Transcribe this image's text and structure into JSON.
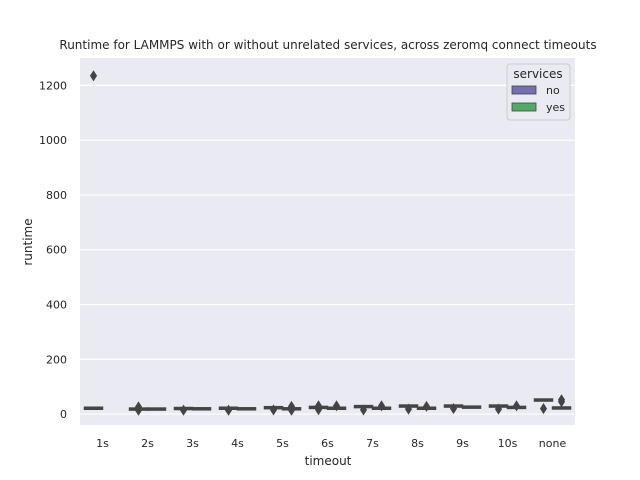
{
  "chart_data": {
    "type": "box",
    "title": "Runtime for LAMMPS with or without unrelated services, across zeromq connect timeouts",
    "xlabel": "timeout",
    "ylabel": "runtime",
    "categories": [
      "1s",
      "2s",
      "3s",
      "4s",
      "5s",
      "6s",
      "7s",
      "8s",
      "9s",
      "10s",
      "none"
    ],
    "ylim": [
      -40,
      1300
    ],
    "yticks": [
      0,
      200,
      400,
      600,
      800,
      1000,
      1200
    ],
    "grid": true,
    "legend": {
      "title": "services",
      "placement": "top-right"
    },
    "series": [
      {
        "name": "no",
        "color": "#7570b0",
        "boxes": [
          {
            "min": 20,
            "q1": 21,
            "median": 22,
            "q3": 23,
            "max": 24,
            "outliers": [
              1235
            ]
          },
          {
            "min": 17,
            "q1": 18,
            "median": 19,
            "q3": 20,
            "max": 21,
            "outliers": [
              14,
              26
            ]
          },
          {
            "min": 19,
            "q1": 20,
            "median": 21,
            "q3": 22,
            "max": 23,
            "outliers": [
              14
            ]
          },
          {
            "min": 20,
            "q1": 21,
            "median": 22,
            "q3": 23,
            "max": 24,
            "outliers": [
              14
            ]
          },
          {
            "min": 22,
            "q1": 23,
            "median": 24,
            "q3": 25,
            "max": 26,
            "outliers": [
              15
            ]
          },
          {
            "min": 20,
            "q1": 22,
            "median": 24,
            "q3": 26,
            "max": 28,
            "outliers": [
              16,
              30
            ]
          },
          {
            "min": 26,
            "q1": 27,
            "median": 28,
            "q3": 29,
            "max": 30,
            "outliers": [
              15
            ]
          },
          {
            "min": 28,
            "q1": 29,
            "median": 30,
            "q3": 31,
            "max": 32,
            "outliers": [
              18
            ]
          },
          {
            "min": 28,
            "q1": 29,
            "median": 30,
            "q3": 31,
            "max": 32,
            "outliers": [
              20
            ]
          },
          {
            "min": 28,
            "q1": 29,
            "median": 30,
            "q3": 31,
            "max": 32,
            "outliers": [
              18
            ]
          },
          {
            "min": 50,
            "q1": 51,
            "median": 52,
            "q3": 53,
            "max": 54,
            "outliers": [
              20
            ]
          }
        ]
      },
      {
        "name": "yes",
        "color": "#55a868",
        "boxes": [
          null,
          {
            "min": 17,
            "q1": 18,
            "median": 19,
            "q3": 20,
            "max": 21,
            "outliers": []
          },
          {
            "min": 18,
            "q1": 19,
            "median": 20,
            "q3": 21,
            "max": 22,
            "outliers": []
          },
          {
            "min": 18,
            "q1": 19,
            "median": 20,
            "q3": 21,
            "max": 22,
            "outliers": []
          },
          {
            "min": 18,
            "q1": 19,
            "median": 20,
            "q3": 21,
            "max": 22,
            "outliers": [
              14,
              28
            ]
          },
          {
            "min": 20,
            "q1": 21,
            "median": 22,
            "q3": 23,
            "max": 24,
            "outliers": [
              30
            ]
          },
          {
            "min": 20,
            "q1": 21,
            "median": 22,
            "q3": 23,
            "max": 24,
            "outliers": [
              30
            ]
          },
          {
            "min": 20,
            "q1": 21,
            "median": 22,
            "q3": 23,
            "max": 24,
            "outliers": [
              28
            ]
          },
          {
            "min": 24,
            "q1": 25,
            "median": 26,
            "q3": 27,
            "max": 28,
            "outliers": []
          },
          {
            "min": 20,
            "q1": 22,
            "median": 24,
            "q3": 26,
            "max": 28,
            "outliers": [
              30
            ]
          },
          {
            "min": 18,
            "q1": 19,
            "median": 22,
            "q3": 24,
            "max": 26,
            "outliers": [
              45,
              52
            ]
          }
        ]
      }
    ]
  }
}
